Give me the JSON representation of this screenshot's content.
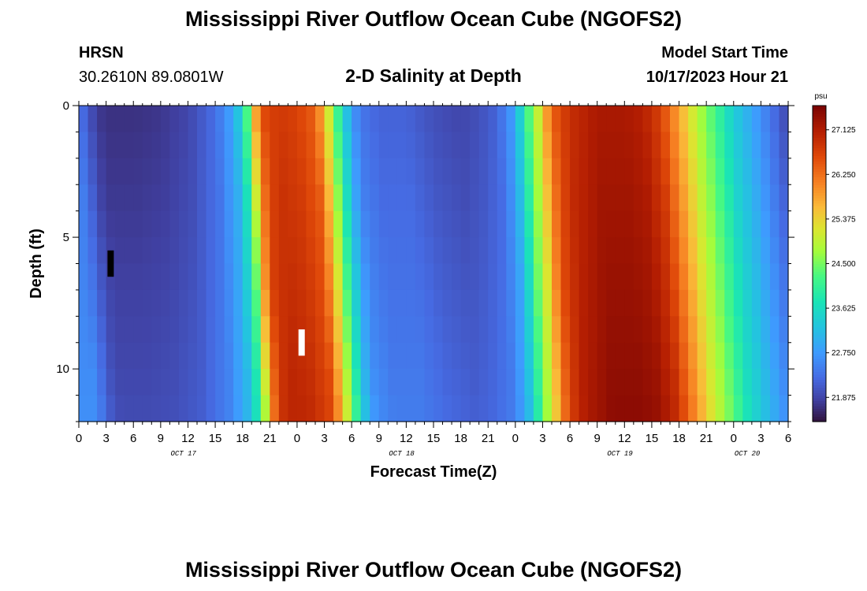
{
  "header": {
    "title": "Mississippi River Outflow Ocean Cube (NGOFS2)",
    "station": "HRSN",
    "coords": "30.2610N  89.0801W",
    "subtitle": "2-D Salinity at Depth",
    "model_start_label": "Model Start Time",
    "model_start_value": "10/17/2023 Hour 21"
  },
  "footer": {
    "title": "Mississippi River Outflow Ocean Cube (NGOFS2)"
  },
  "chart_data": {
    "type": "heatmap",
    "title": "2-D Salinity at Depth",
    "xlabel": "Forecast Time(Z)",
    "ylabel": "Depth (ft)",
    "x_start_hour": 0,
    "x_end_hour": 78,
    "x_tick_labels": [
      "0",
      "3",
      "6",
      "9",
      "12",
      "15",
      "18",
      "21",
      "0",
      "3",
      "6",
      "9",
      "12",
      "15",
      "18",
      "21",
      "0",
      "3",
      "6",
      "9",
      "12",
      "15",
      "18",
      "21",
      "0",
      "3",
      "6"
    ],
    "date_labels": [
      {
        "label": "OCT 17",
        "hour": 11.5
      },
      {
        "label": "OCT 18",
        "hour": 35.5
      },
      {
        "label": "OCT 19",
        "hour": 59.5
      },
      {
        "label": "OCT 20",
        "hour": 73.5
      }
    ],
    "ylim": [
      0,
      12
    ],
    "y_major_ticks": [
      0,
      5,
      10
    ],
    "y_minor_step": 1,
    "depth_levels": 12,
    "colorbar": {
      "unit": "psu",
      "vmin": 21.4,
      "vmax": 27.6,
      "tick_values": [
        21.875,
        22.75,
        23.625,
        24.5,
        25.375,
        26.25,
        27.125
      ],
      "tick_labels": [
        "21.875",
        "22.750",
        "23.625",
        "24.500",
        "25.375",
        "26.250",
        "27.125"
      ]
    },
    "surface_salinity_profile": [
      [
        0,
        22.4
      ],
      [
        1,
        22.1
      ],
      [
        2,
        21.8
      ],
      [
        3,
        21.7
      ],
      [
        6,
        21.7
      ],
      [
        9,
        21.75
      ],
      [
        12,
        21.9
      ],
      [
        15,
        22.3
      ],
      [
        17,
        22.9
      ],
      [
        18,
        23.6
      ],
      [
        18.8,
        24.6
      ],
      [
        19.5,
        25.8
      ],
      [
        20.5,
        26.6
      ],
      [
        22,
        26.8
      ],
      [
        24,
        26.7
      ],
      [
        26,
        26.4
      ],
      [
        27,
        25.6
      ],
      [
        28,
        24.6
      ],
      [
        29,
        23.6
      ],
      [
        30,
        22.8
      ],
      [
        31,
        22.4
      ],
      [
        33,
        22.2
      ],
      [
        36,
        22.2
      ],
      [
        39,
        22.0
      ],
      [
        42,
        21.9
      ],
      [
        44,
        22.0
      ],
      [
        46,
        22.2
      ],
      [
        47.5,
        22.7
      ],
      [
        48.5,
        23.4
      ],
      [
        49.5,
        24.3
      ],
      [
        50.5,
        25.0
      ],
      [
        51.5,
        25.9
      ],
      [
        52.5,
        26.5
      ],
      [
        54,
        26.9
      ],
      [
        57,
        27.2
      ],
      [
        60,
        27.2
      ],
      [
        62,
        27.1
      ],
      [
        64,
        26.7
      ],
      [
        66,
        25.8
      ],
      [
        68,
        24.9
      ],
      [
        70,
        24.2
      ],
      [
        72,
        23.4
      ],
      [
        74,
        22.9
      ],
      [
        76,
        22.4
      ],
      [
        78,
        21.9
      ]
    ],
    "depth_shift_hours": 1.7,
    "depth_warming_psu": 0.12,
    "markers": [
      {
        "hour": 3.5,
        "depth_top": 5.5,
        "depth_bottom": 6.5,
        "color": "#000000"
      },
      {
        "hour": 24.5,
        "depth_top": 8.5,
        "depth_bottom": 9.5,
        "color": "#ffffff"
      }
    ]
  }
}
